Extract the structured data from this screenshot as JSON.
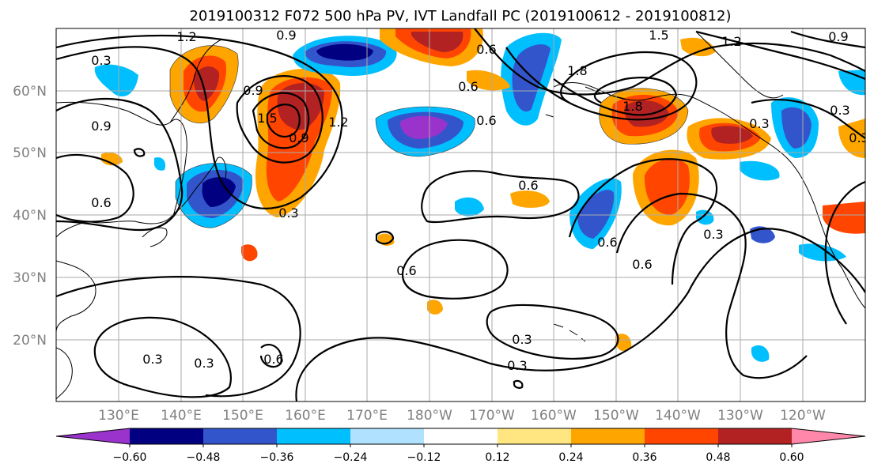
{
  "title": "2019100312 F072 500 hPa PV, IVT Landfall PC (2019100612 - 2019100812)",
  "map": {
    "lat_ticks": [
      "60°N",
      "50°N",
      "40°N",
      "30°N",
      "20°N"
    ],
    "lon_ticks": [
      "130°E",
      "140°E",
      "150°E",
      "160°E",
      "170°E",
      "180°W",
      "170°W",
      "160°W",
      "150°W",
      "140°W",
      "130°W",
      "120°W"
    ],
    "contour_labels": [
      "1.2",
      "0.9",
      "0.6",
      "1.5",
      "0.9",
      "1.2",
      "0.9",
      "0.6",
      "0.9",
      "0.6",
      "1.5",
      "1.8",
      "1.2",
      "0.9",
      "1.8",
      "0.6",
      "0.3",
      "0.3",
      "0.6",
      "0.3",
      "0.6",
      "0.3",
      "0.6",
      "0.6",
      "0.3",
      "0.3",
      "0.6",
      "0.3",
      "0.3",
      "0.3",
      "0.3"
    ]
  },
  "colorbar": {
    "colors": [
      "#9933cc",
      "#000080",
      "#3355cc",
      "#00bfff",
      "#b0e2ff",
      "#ffffff",
      "#ffe680",
      "#ffa500",
      "#ff4500",
      "#b22222",
      "#ff88aa"
    ],
    "tick_labels": [
      "−0.60",
      "−0.48",
      "−0.36",
      "−0.24",
      "−0.12",
      "0.12",
      "0.24",
      "0.36",
      "0.48",
      "0.60"
    ]
  },
  "legend_colors": {
    "purple": "#9933cc",
    "navy": "#000080",
    "blue": "#3355cc",
    "cyan": "#00bfff",
    "lightblue": "#b0e2ff",
    "yellow": "#ffe680",
    "orange": "#ffa500",
    "red": "#ff4500",
    "darkred": "#b22222",
    "pink": "#ff88aa"
  }
}
